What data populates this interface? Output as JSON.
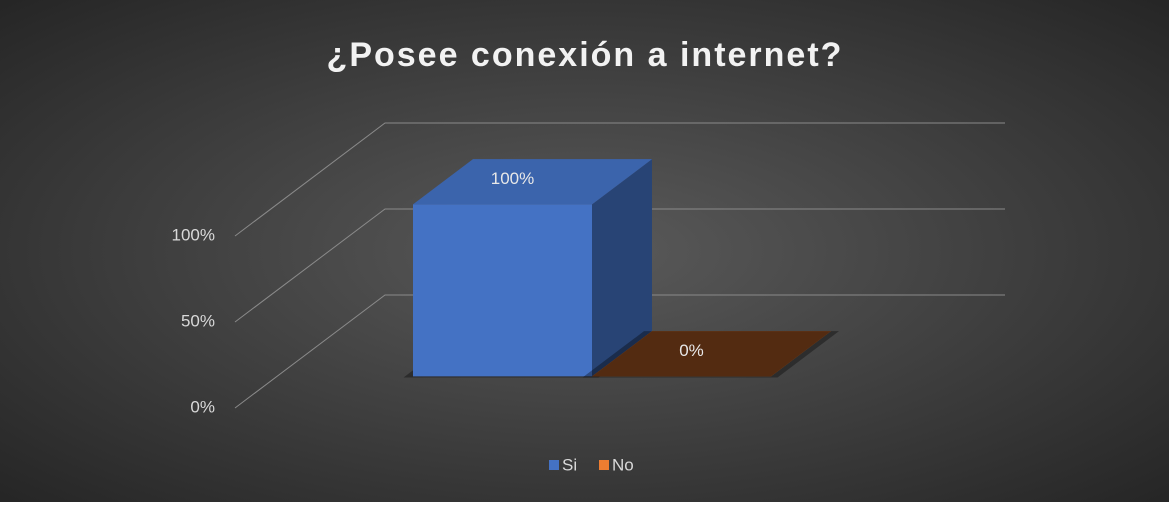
{
  "chart_data": {
    "type": "bar3d",
    "title": "¿Posee conexión a internet?",
    "categories": [
      null
    ],
    "series": [
      {
        "name": "Si",
        "color": "#4472c4",
        "values": [
          100
        ],
        "value_labels": [
          "100%"
        ]
      },
      {
        "name": "No",
        "color": "#ed7d31",
        "values": [
          0
        ],
        "value_labels": [
          "0%"
        ]
      }
    ],
    "ylim": [
      0,
      100
    ],
    "yticks": [
      {
        "value": 0,
        "label": "0%"
      },
      {
        "value": 50,
        "label": "50%"
      },
      {
        "value": 100,
        "label": "100%"
      }
    ],
    "grid": true,
    "legend": "bottom"
  }
}
